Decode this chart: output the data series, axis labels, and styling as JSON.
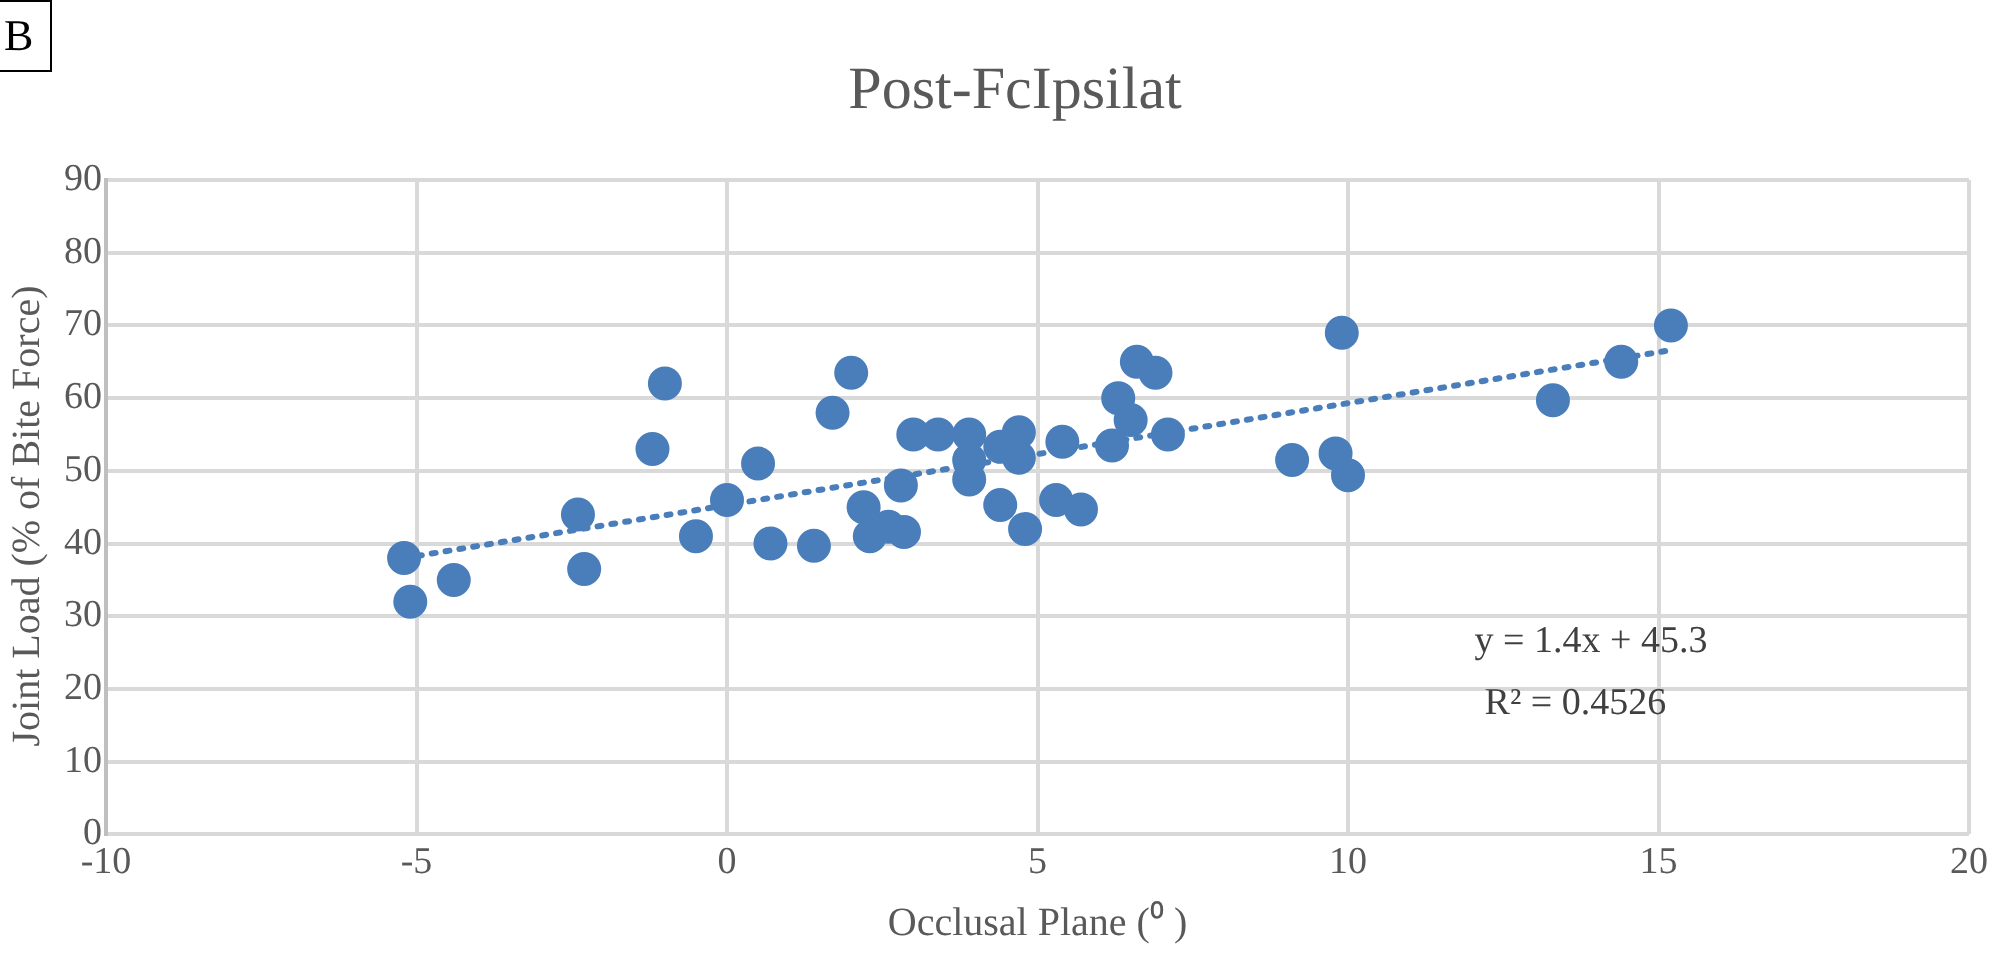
{
  "chart_data": {
    "type": "scatter",
    "title": "Post-FcIpsilat",
    "xlabel": "Occlusal Plane (⁰ )",
    "ylabel": "Joint Load (% of Bite Force)",
    "annotations": [
      "B",
      "y = 1.4x + 45.3",
      "R² = 0.4526"
    ],
    "xlim": [
      -10,
      20
    ],
    "xticks": [
      -10,
      -5,
      0,
      5,
      10,
      15,
      20
    ],
    "ylim": [
      0,
      90
    ],
    "yticks": [
      0,
      10,
      20,
      30,
      40,
      50,
      60,
      70,
      80,
      90
    ],
    "grid": true,
    "legend": false,
    "marker": "circle",
    "series": [
      {
        "type": "scatter",
        "color": "#4a7ebb",
        "x": [
          -5.2,
          -5.1,
          -4.4,
          -2.4,
          -2.3,
          -0.5,
          -1.0,
          -1.2,
          0.0,
          0.5,
          0.7,
          1.4,
          1.7,
          2.0,
          2.2,
          2.3,
          2.6,
          2.85,
          2.8,
          3.0,
          3.4,
          3.9,
          3.9,
          3.9,
          4.4,
          4.4,
          4.7,
          4.7,
          4.8,
          5.3,
          5.4,
          5.7,
          6.2,
          6.3,
          6.5,
          6.6,
          6.9,
          7.1,
          9.1,
          9.8,
          9.9,
          10.0,
          13.3,
          14.4,
          15.2
        ],
        "values": [
          38,
          32,
          35,
          44,
          36.5,
          41,
          62,
          53,
          46,
          51,
          40,
          39.7,
          58,
          63.5,
          45,
          41,
          42.3,
          41.6,
          48,
          55,
          55,
          55,
          51.5,
          48.8,
          45.3,
          53.3,
          51.8,
          55.3,
          42,
          46,
          54,
          44.7,
          53.5,
          60,
          57,
          65,
          63.5,
          55,
          51.5,
          52.4,
          69,
          49.4,
          59.7,
          65,
          70
        ]
      },
      {
        "type": "line",
        "color": "#4a7ebb",
        "line_style": "dotted",
        "marker": "none",
        "x": [
          -5.2,
          15.2
        ],
        "values": [
          38.0,
          66.6
        ]
      }
    ]
  }
}
